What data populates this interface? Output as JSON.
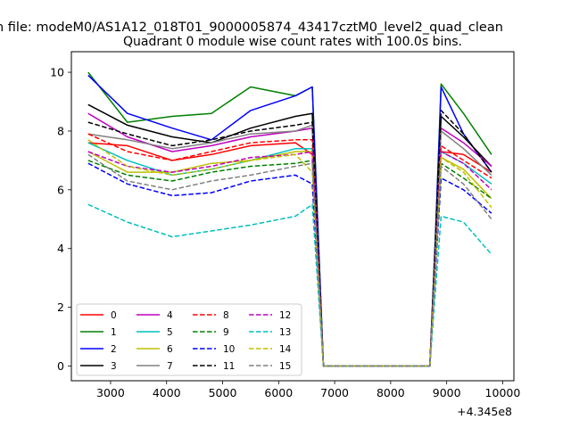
{
  "figure": {
    "suptitle": "n file: modeM0/AS1A12_018T01_9000005874_43417cztM0_level2_quad_clean",
    "title": "Quadrant 0 module wise count rates with 100.0s bins.",
    "offset_text": "+4.345e8"
  },
  "chart_data": {
    "type": "line",
    "title": "Quadrant 0 module wise count rates with 100.0s bins.",
    "xlabel": "",
    "ylabel": "",
    "x_offset": 434500000,
    "xlim": [
      2300,
      10200
    ],
    "ylim": [
      -0.5,
      10.7
    ],
    "xticks": [
      3000,
      4000,
      5000,
      6000,
      7000,
      8000,
      9000,
      10000
    ],
    "yticks": [
      0,
      2,
      4,
      6,
      8,
      10
    ],
    "grid": false,
    "legend": {
      "location": "lower left",
      "columns": 4
    },
    "x": [
      2600,
      3300,
      4100,
      4800,
      5500,
      6300,
      6600,
      6800,
      8700,
      8800,
      8900,
      9300,
      9800
    ],
    "series": [
      {
        "name": "0",
        "color": "#ff0000",
        "dash": "solid",
        "values": [
          7.6,
          7.5,
          7.0,
          7.2,
          7.5,
          7.6,
          7.2,
          0,
          0,
          3.5,
          7.3,
          7.2,
          6.6
        ]
      },
      {
        "name": "1",
        "color": "#008000",
        "dash": "solid",
        "values": [
          10.0,
          8.3,
          8.5,
          8.6,
          9.5,
          9.2,
          9.5,
          0,
          0,
          4.5,
          9.6,
          8.6,
          7.2
        ]
      },
      {
        "name": "2",
        "color": "#0000ff",
        "dash": "solid",
        "values": [
          9.9,
          8.6,
          8.1,
          7.7,
          8.7,
          9.2,
          9.5,
          0,
          0,
          4.4,
          9.5,
          7.9,
          6.6
        ]
      },
      {
        "name": "3",
        "color": "#000000",
        "dash": "solid",
        "values": [
          8.9,
          8.2,
          7.8,
          7.6,
          8.1,
          8.5,
          8.6,
          0,
          0,
          4.2,
          8.5,
          7.8,
          6.8
        ]
      },
      {
        "name": "4",
        "color": "#bf00bf",
        "dash": "solid",
        "values": [
          8.6,
          7.8,
          7.3,
          7.5,
          7.8,
          8.0,
          8.1,
          0,
          0,
          4.0,
          8.1,
          7.6,
          6.8
        ]
      },
      {
        "name": "5",
        "color": "#00bfbf",
        "dash": "solid",
        "values": [
          7.6,
          7.0,
          6.5,
          6.7,
          7.0,
          7.4,
          7.4,
          0,
          0,
          3.6,
          7.3,
          6.9,
          6.2
        ]
      },
      {
        "name": "6",
        "color": "#bfbf00",
        "dash": "solid",
        "values": [
          7.3,
          6.6,
          6.6,
          6.9,
          7.0,
          7.3,
          7.3,
          0,
          0,
          3.5,
          7.1,
          6.7,
          5.7
        ]
      },
      {
        "name": "7",
        "color": "#808080",
        "dash": "solid",
        "values": [
          7.9,
          7.7,
          7.4,
          7.6,
          7.9,
          8.0,
          8.2,
          0,
          0,
          4.0,
          8.0,
          7.4,
          6.5
        ]
      },
      {
        "name": "8",
        "color": "#ff0000",
        "dash": "dashed",
        "values": [
          7.9,
          7.3,
          7.0,
          7.3,
          7.6,
          7.7,
          7.7,
          0,
          0,
          3.7,
          7.5,
          7.0,
          6.4
        ]
      },
      {
        "name": "9",
        "color": "#008000",
        "dash": "dashed",
        "values": [
          7.0,
          6.5,
          6.3,
          6.6,
          6.8,
          6.9,
          7.0,
          0,
          0,
          3.4,
          6.9,
          6.4,
          5.7
        ]
      },
      {
        "name": "10",
        "color": "#0000ff",
        "dash": "dashed",
        "values": [
          6.9,
          6.2,
          5.8,
          5.9,
          6.3,
          6.5,
          6.2,
          0,
          0,
          3.2,
          6.4,
          6.0,
          5.2
        ]
      },
      {
        "name": "11",
        "color": "#000000",
        "dash": "dashed",
        "values": [
          8.3,
          7.9,
          7.5,
          7.7,
          8.0,
          8.2,
          8.3,
          0,
          0,
          4.1,
          8.7,
          7.9,
          6.6
        ]
      },
      {
        "name": "12",
        "color": "#bf00bf",
        "dash": "dashed",
        "values": [
          7.3,
          6.8,
          6.6,
          6.8,
          7.1,
          7.2,
          7.3,
          0,
          0,
          3.6,
          7.3,
          6.9,
          6.0
        ]
      },
      {
        "name": "13",
        "color": "#00bfbf",
        "dash": "dashed",
        "values": [
          5.5,
          4.9,
          4.4,
          4.6,
          4.8,
          5.1,
          5.5,
          0,
          0,
          2.6,
          5.1,
          4.9,
          3.8
        ]
      },
      {
        "name": "14",
        "color": "#bfbf00",
        "dash": "dashed",
        "values": [
          7.7,
          6.8,
          6.5,
          6.7,
          7.0,
          7.2,
          6.6,
          0,
          0,
          3.4,
          7.1,
          6.6,
          5.4
        ]
      },
      {
        "name": "15",
        "color": "#808080",
        "dash": "dashed",
        "values": [
          7.2,
          6.3,
          6.0,
          6.3,
          6.5,
          6.8,
          6.9,
          0,
          0,
          3.3,
          6.8,
          6.2,
          5.0
        ]
      }
    ]
  }
}
